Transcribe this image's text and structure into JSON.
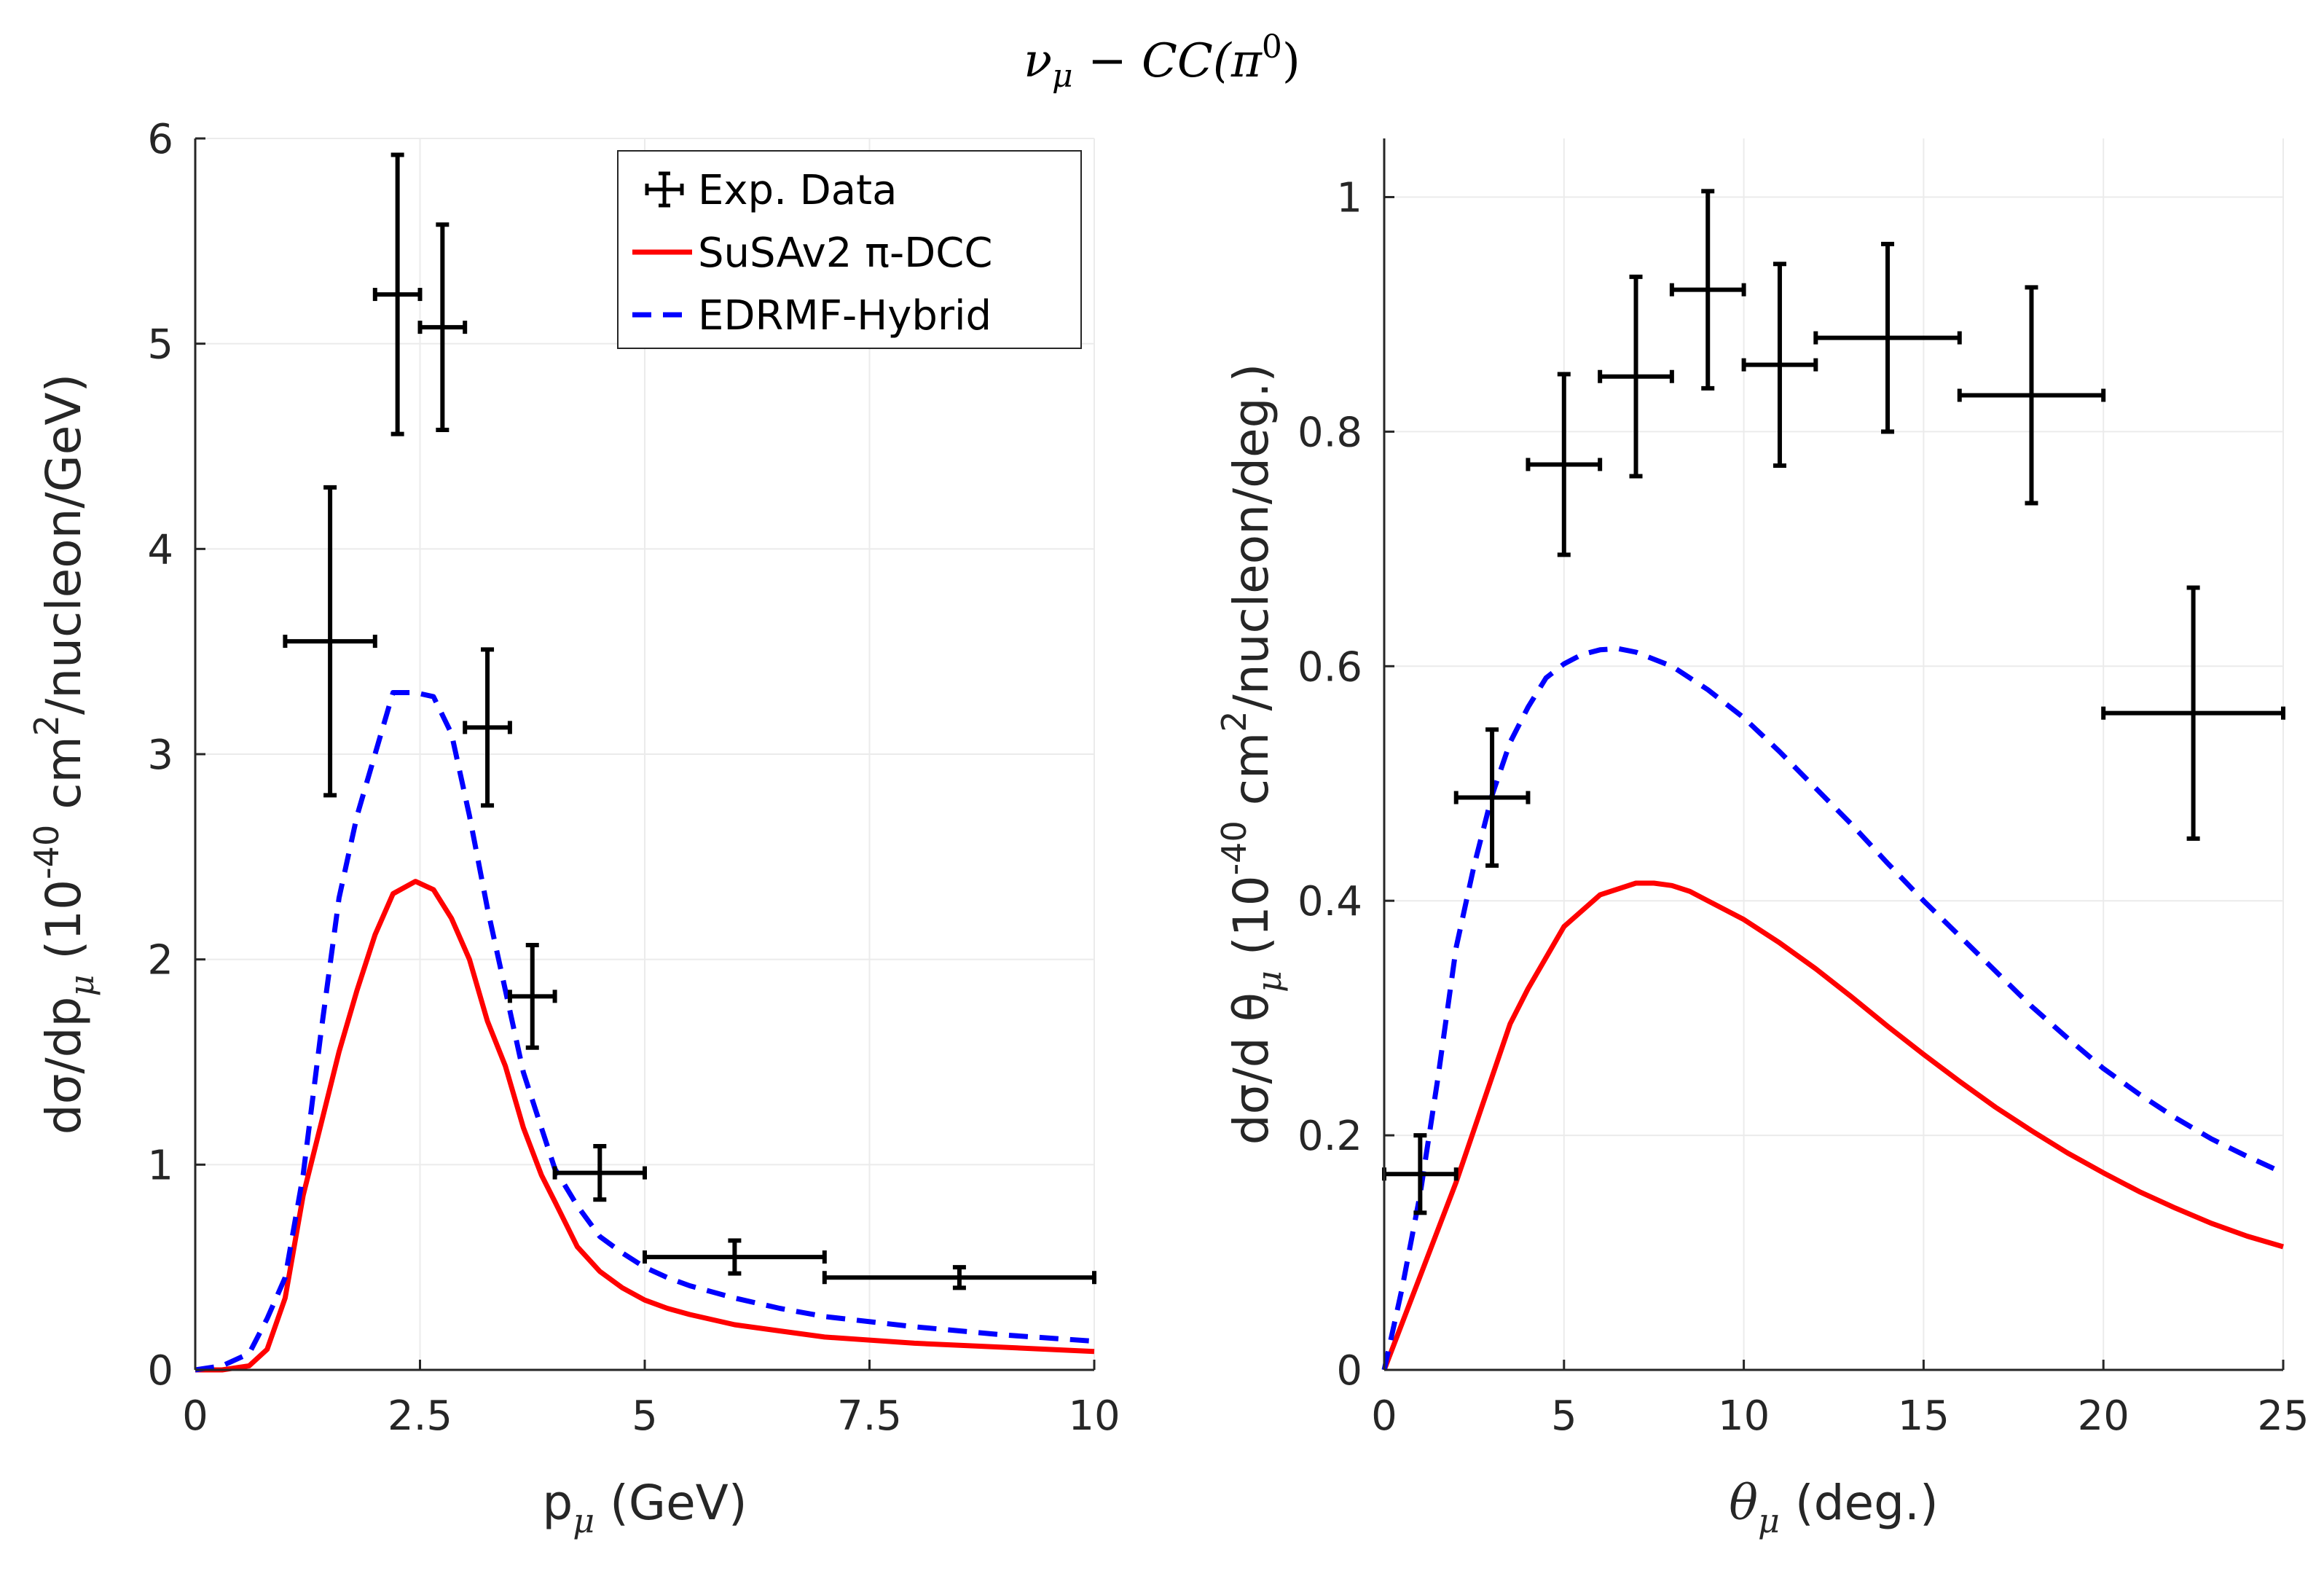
{
  "title": {
    "nu": "ν",
    "mu_sub": "μ",
    "rest": " − CC(π",
    "sup": "0",
    "close": ")"
  },
  "colors": {
    "data": "#000000",
    "susa": "#ff0000",
    "edrmf": "#0000ff",
    "axis": "#262626",
    "grid": "#ebebeb"
  },
  "legend": {
    "entries": [
      {
        "label": "Exp. Data",
        "style": "errorbar"
      },
      {
        "label": "SuSAv2  π-DCC",
        "style": "solid"
      },
      {
        "label": "EDRMF-Hybrid",
        "style": "dashed"
      }
    ]
  },
  "chart_data": [
    {
      "type": "line",
      "panel": "left",
      "xlabel": {
        "main": "p",
        "sub": "μ",
        "unit": " (GeV)"
      },
      "ylabel": {
        "pre": "dσ/dp",
        "sub": "μ",
        "mid": " (10",
        "sup1": "-40",
        "mid2": " cm",
        "sup2": "2",
        "post": "/nucleon/GeV)"
      },
      "xlim": [
        0,
        10
      ],
      "ylim": [
        0,
        6
      ],
      "xticks": [
        0,
        2.5,
        5,
        7.5,
        10
      ],
      "xticklabels": [
        "0",
        "2.5",
        "5",
        "7.5",
        "10"
      ],
      "yticks": [
        0,
        1,
        2,
        3,
        4,
        5,
        6
      ],
      "yticklabels": [
        "0",
        "1",
        "2",
        "3",
        "4",
        "5",
        "6"
      ],
      "grid": true,
      "legend_location": "top-right",
      "exp_data": [
        {
          "x": 1.5,
          "xerr": 0.5,
          "y": 3.55,
          "yerr": 0.75
        },
        {
          "x": 2.25,
          "xerr": 0.25,
          "y": 5.24,
          "yerr": 0.68
        },
        {
          "x": 2.75,
          "xerr": 0.25,
          "y": 5.08,
          "yerr": 0.5
        },
        {
          "x": 3.25,
          "xerr": 0.25,
          "y": 3.13,
          "yerr": 0.38
        },
        {
          "x": 3.75,
          "xerr": 0.25,
          "y": 1.82,
          "yerr": 0.25
        },
        {
          "x": 4.5,
          "xerr": 0.5,
          "y": 0.96,
          "yerr": 0.13
        },
        {
          "x": 6.0,
          "xerr": 1.0,
          "y": 0.55,
          "yerr": 0.08
        },
        {
          "x": 8.5,
          "xerr": 1.5,
          "y": 0.45,
          "yerr": 0.05
        }
      ],
      "series": [
        {
          "name": "SuSAv2  π-DCC",
          "x": [
            0,
            0.3,
            0.6,
            0.8,
            1.0,
            1.2,
            1.4,
            1.6,
            1.8,
            2.0,
            2.2,
            2.45,
            2.65,
            2.85,
            3.05,
            3.25,
            3.45,
            3.65,
            3.85,
            4.0,
            4.25,
            4.5,
            4.75,
            5.0,
            5.25,
            5.5,
            6.0,
            6.5,
            7.0,
            8.0,
            9.0,
            10.0
          ],
          "y": [
            0,
            0,
            0.02,
            0.1,
            0.35,
            0.85,
            1.2,
            1.55,
            1.85,
            2.12,
            2.32,
            2.38,
            2.34,
            2.2,
            2.0,
            1.7,
            1.48,
            1.18,
            0.95,
            0.82,
            0.6,
            0.48,
            0.4,
            0.34,
            0.3,
            0.27,
            0.22,
            0.19,
            0.16,
            0.13,
            0.11,
            0.09
          ]
        },
        {
          "name": "EDRMF-Hybrid",
          "x": [
            0,
            0.3,
            0.6,
            0.8,
            1.0,
            1.2,
            1.4,
            1.6,
            1.8,
            2.0,
            2.2,
            2.45,
            2.65,
            2.85,
            3.05,
            3.25,
            3.45,
            3.65,
            3.85,
            4.0,
            4.25,
            4.5,
            4.75,
            5.0,
            5.25,
            5.5,
            6.0,
            6.5,
            7.0,
            8.0,
            9.0,
            10.0
          ],
          "y": [
            0,
            0.02,
            0.08,
            0.25,
            0.45,
            0.95,
            1.65,
            2.3,
            2.7,
            3.0,
            3.3,
            3.3,
            3.28,
            3.1,
            2.7,
            2.25,
            1.85,
            1.45,
            1.18,
            0.98,
            0.8,
            0.65,
            0.57,
            0.5,
            0.45,
            0.41,
            0.35,
            0.3,
            0.26,
            0.21,
            0.17,
            0.14
          ]
        }
      ]
    },
    {
      "type": "line",
      "panel": "right",
      "xlabel": {
        "main": "θ",
        "sub": "μ",
        "unit": " (deg.)"
      },
      "ylabel": {
        "pre": "dσ/d θ",
        "sub": "μ",
        "mid": " (10",
        "sup1": "-40",
        "mid2": " cm",
        "sup2": "2",
        "post": "/nucleon/deg.)"
      },
      "xlim": [
        0,
        25
      ],
      "ylim": [
        0,
        1.05
      ],
      "xticks": [
        0,
        5,
        10,
        15,
        20,
        25
      ],
      "xticklabels": [
        "0",
        "5",
        "10",
        "15",
        "20",
        "25"
      ],
      "yticks": [
        0,
        0.2,
        0.4,
        0.6,
        0.8,
        1
      ],
      "yticklabels": [
        "0",
        "0.2",
        "0.4",
        "0.6",
        "0.8",
        "1"
      ],
      "grid": true,
      "exp_data": [
        {
          "x": 1.0,
          "xerr": 1.0,
          "y": 0.167,
          "yerr": 0.033
        },
        {
          "x": 3.0,
          "xerr": 1.0,
          "y": 0.488,
          "yerr": 0.058
        },
        {
          "x": 5.0,
          "xerr": 1.0,
          "y": 0.772,
          "yerr": 0.077
        },
        {
          "x": 7.0,
          "xerr": 1.0,
          "y": 0.847,
          "yerr": 0.085
        },
        {
          "x": 9.0,
          "xerr": 1.0,
          "y": 0.921,
          "yerr": 0.084
        },
        {
          "x": 11.0,
          "xerr": 1.0,
          "y": 0.857,
          "yerr": 0.086
        },
        {
          "x": 14.0,
          "xerr": 2.0,
          "y": 0.88,
          "yerr": 0.08
        },
        {
          "x": 18.0,
          "xerr": 2.0,
          "y": 0.831,
          "yerr": 0.092
        },
        {
          "x": 22.5,
          "xerr": 2.5,
          "y": 0.56,
          "yerr": 0.107
        }
      ],
      "series": [
        {
          "name": "SuSAv2  π-DCC",
          "x": [
            0,
            1,
            2,
            3,
            3.5,
            4,
            5,
            6,
            7,
            7.5,
            8,
            8.5,
            9,
            10,
            11,
            12,
            13,
            14,
            15,
            16,
            17,
            18,
            19,
            20,
            21,
            22,
            23,
            24,
            25
          ],
          "y": [
            0,
            0.08,
            0.16,
            0.25,
            0.295,
            0.325,
            0.378,
            0.405,
            0.415,
            0.415,
            0.413,
            0.408,
            0.4,
            0.384,
            0.364,
            0.342,
            0.318,
            0.293,
            0.269,
            0.246,
            0.224,
            0.204,
            0.185,
            0.168,
            0.152,
            0.138,
            0.125,
            0.114,
            0.105
          ]
        },
        {
          "name": "EDRMF-Hybrid",
          "x": [
            0,
            0.5,
            1,
            1.5,
            2,
            2.5,
            3,
            3.5,
            4,
            4.5,
            5,
            5.5,
            6,
            6.5,
            7,
            8,
            9,
            10,
            11,
            12,
            13,
            14,
            15,
            16,
            17,
            18,
            19,
            20,
            21,
            22,
            23,
            24,
            25
          ],
          "y": [
            0,
            0.07,
            0.15,
            0.25,
            0.36,
            0.43,
            0.49,
            0.535,
            0.565,
            0.59,
            0.602,
            0.61,
            0.614,
            0.615,
            0.612,
            0.6,
            0.58,
            0.556,
            0.527,
            0.496,
            0.465,
            0.432,
            0.4,
            0.37,
            0.34,
            0.31,
            0.283,
            0.257,
            0.235,
            0.215,
            0.197,
            0.182,
            0.168
          ]
        }
      ]
    }
  ]
}
